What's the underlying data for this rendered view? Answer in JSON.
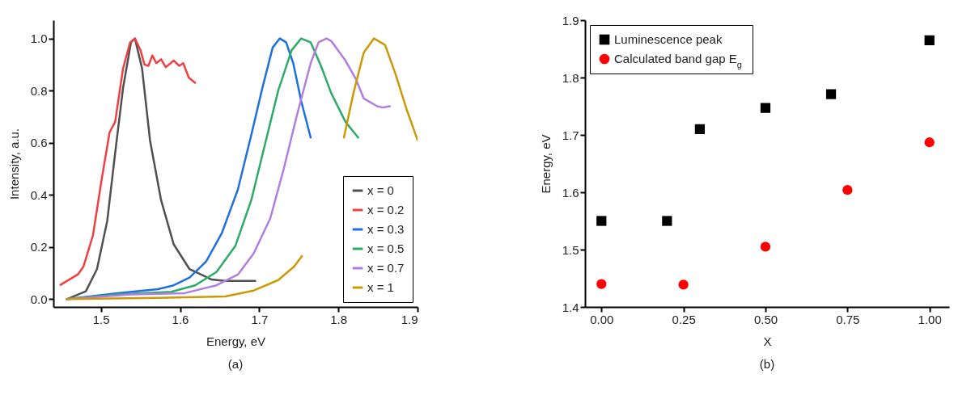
{
  "chart_data": [
    {
      "type": "line",
      "xlabel": "Energy, eV",
      "ylabel": "Intensity, a.u.",
      "annotations": [
        "(a)"
      ],
      "xlim": [
        1.44,
        1.9
      ],
      "ylim": [
        -0.03,
        1.07
      ],
      "xticks": [
        1.5,
        1.6,
        1.7,
        1.8,
        1.9
      ],
      "yticks": [
        {
          "value": 0,
          "label": "0.0"
        },
        0.2,
        0.4,
        0.6,
        0.8,
        {
          "value": 1,
          "label": "1.0"
        }
      ],
      "grid": false,
      "legend": "bottom right",
      "line_style": "solid",
      "series": [
        {
          "name": "x = 0",
          "color": "#505050",
          "x": [
            1.457,
            1.481,
            1.495,
            1.508,
            1.518,
            1.528,
            1.538,
            1.543,
            1.552,
            1.562,
            1.576,
            1.592,
            1.612,
            1.64,
            1.657,
            1.695
          ],
          "values": [
            0.0,
            0.03,
            0.115,
            0.3,
            0.56,
            0.81,
            0.985,
            1.0,
            0.885,
            0.61,
            0.38,
            0.21,
            0.115,
            0.075,
            0.07,
            0.07
          ]
        },
        {
          "name": "x = 0.2",
          "color": "#ee4040",
          "x": [
            1.449,
            1.471,
            1.478,
            1.49,
            1.501,
            1.511,
            1.518,
            1.528,
            1.537,
            1.543,
            1.55,
            1.555,
            1.56,
            1.565,
            1.57,
            1.576,
            1.582,
            1.592,
            1.599,
            1.604,
            1.611,
            1.619
          ],
          "values": [
            0.055,
            0.095,
            0.125,
            0.245,
            0.46,
            0.64,
            0.68,
            0.885,
            0.985,
            1.0,
            0.955,
            0.9,
            0.895,
            0.935,
            0.905,
            0.92,
            0.89,
            0.915,
            0.895,
            0.905,
            0.85,
            0.83
          ]
        },
        {
          "name": "x = 0.3",
          "color": "#1f6fe0",
          "x": [
            1.457,
            1.521,
            1.572,
            1.592,
            1.612,
            1.633,
            1.653,
            1.673,
            1.69,
            1.704,
            1.717,
            1.726,
            1.734,
            1.743,
            1.753,
            1.765
          ],
          "values": [
            0.0,
            0.023,
            0.038,
            0.053,
            0.083,
            0.145,
            0.255,
            0.42,
            0.63,
            0.81,
            0.965,
            1.0,
            0.985,
            0.905,
            0.76,
            0.62
          ]
        },
        {
          "name": "x = 0.5",
          "color": "#2eaa6a",
          "x": [
            1.457,
            1.521,
            1.589,
            1.619,
            1.646,
            1.67,
            1.69,
            1.707,
            1.724,
            1.741,
            1.753,
            1.765,
            1.778,
            1.791,
            1.809,
            1.825
          ],
          "values": [
            0.0,
            0.018,
            0.028,
            0.053,
            0.104,
            0.205,
            0.38,
            0.59,
            0.8,
            0.955,
            1.0,
            0.985,
            0.895,
            0.79,
            0.68,
            0.62
          ]
        },
        {
          "name": "x = 0.7",
          "color": "#b07ee0",
          "x": [
            1.457,
            1.538,
            1.606,
            1.646,
            1.673,
            1.693,
            1.714,
            1.731,
            1.748,
            1.765,
            1.775,
            1.785,
            1.791,
            1.809,
            1.822,
            1.832,
            1.849,
            1.856,
            1.865
          ],
          "values": [
            0.0,
            0.018,
            0.023,
            0.053,
            0.094,
            0.175,
            0.31,
            0.5,
            0.71,
            0.905,
            0.985,
            1.0,
            0.99,
            0.915,
            0.845,
            0.77,
            0.74,
            0.735,
            0.74
          ]
        },
        {
          "name": "x = 1",
          "color": "#cc9a06",
          "x": [
            1.457,
            1.572,
            1.657,
            1.693,
            1.724,
            1.744,
            1.754,
            1.78,
            1.807,
            1.819,
            1.832,
            1.845,
            1.859,
            1.872,
            1.886,
            1.9
          ],
          "values": [
            0.0,
            0.005,
            0.01,
            0.033,
            0.073,
            0.125,
            0.165,
            null,
            0.62,
            0.79,
            0.945,
            1.0,
            0.975,
            0.865,
            0.73,
            0.61
          ]
        }
      ]
    },
    {
      "type": "scatter",
      "xlabel": "X",
      "ylabel": "Energy, eV",
      "annotations": [
        "(b)"
      ],
      "xlim": [
        -0.05,
        1.06
      ],
      "ylim": [
        1.4,
        1.9
      ],
      "xticks": [
        {
          "value": 0,
          "label": "0.00"
        },
        0.25,
        {
          "value": 0.5,
          "label": "0.50"
        },
        0.75,
        {
          "value": 1,
          "label": "1.00"
        }
      ],
      "yticks": [
        1.4,
        1.5,
        1.6,
        1.7,
        1.8,
        1.9
      ],
      "grid": false,
      "legend": "top left",
      "series": [
        {
          "name": "Luminescence peak",
          "color": "#000000",
          "marker": "square",
          "x": [
            0,
            0.2,
            0.3,
            0.5,
            0.7,
            1.0
          ],
          "values": [
            1.55,
            1.55,
            1.71,
            1.747,
            1.771,
            1.865
          ]
        },
        {
          "name": "Calculated band gap E$_{g}$",
          "color": "#ff0000",
          "marker": "circle",
          "x": [
            0,
            0.25,
            0.5,
            0.75,
            1.0
          ],
          "values": [
            1.44,
            1.439,
            1.505,
            1.604,
            1.687
          ]
        }
      ]
    }
  ]
}
